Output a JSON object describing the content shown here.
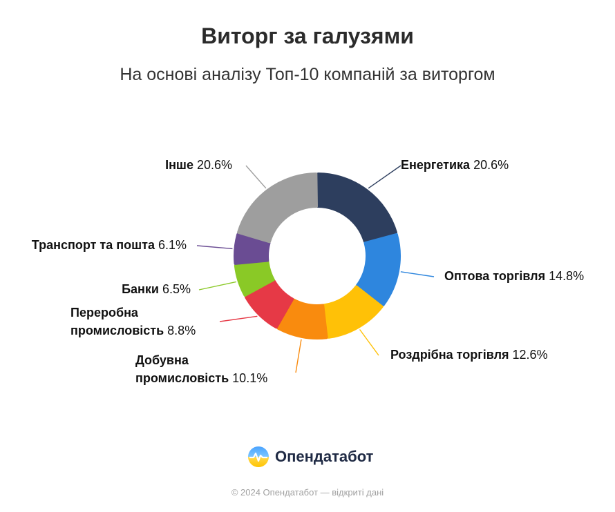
{
  "header": {
    "title": "Виторг за галузями",
    "subtitle": "На основі аналізу Топ-10 компаній за виторгом"
  },
  "chart_data": {
    "type": "pie",
    "donut": true,
    "unit": "%",
    "slices": [
      {
        "lines": [
          "Енергетика"
        ],
        "value": 20.6,
        "color": "#2d3e5e"
      },
      {
        "lines": [
          "Оптова торгівля"
        ],
        "value": 14.8,
        "color": "#2e86de"
      },
      {
        "lines": [
          "Роздрібна торгівля"
        ],
        "value": 12.6,
        "color": "#ffc107"
      },
      {
        "lines": [
          "Добувна",
          "промисловість"
        ],
        "value": 10.1,
        "color": "#f98b0e"
      },
      {
        "lines": [
          "Переробна",
          "промисловість"
        ],
        "value": 8.8,
        "color": "#e63946"
      },
      {
        "lines": [
          "Банки"
        ],
        "value": 6.5,
        "color": "#8ac926"
      },
      {
        "lines": [
          "Транспорт та пошта"
        ],
        "value": 6.1,
        "color": "#6a4c93"
      },
      {
        "lines": [
          "Інше"
        ],
        "value": 20.6,
        "color": "#9e9e9e"
      }
    ]
  },
  "brand": {
    "name": "Опендатабот",
    "icon": "opendatabot-logo-icon"
  },
  "footer": {
    "text": "© 2024 Опендатабот — відкриті дані"
  }
}
